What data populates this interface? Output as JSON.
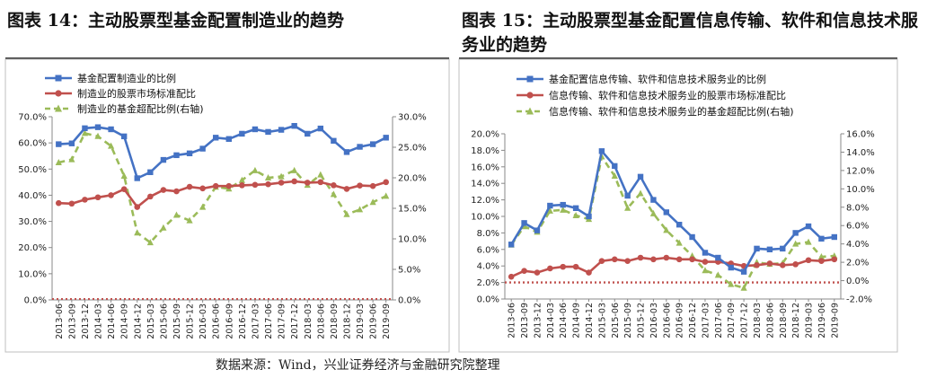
{
  "titles": {
    "left": "图表 14：主动股票型基金配置制造业的趋势",
    "right": "图表 15：主动股票型基金配置信息传输、软件和信息技术服务业的趋势"
  },
  "source": "数据来源：Wind，兴业证券经济与金融研究院整理",
  "colors": {
    "blue": "#4472C4",
    "red": "#C0504D",
    "green": "#9BBB59"
  },
  "chart_data": [
    {
      "type": "line",
      "title": "图表 14：主动股票型基金配置制造业的趋势",
      "x": [
        "2013-06",
        "2013-09",
        "2013-12",
        "2014-03",
        "2014-06",
        "2014-09",
        "2014-12",
        "2015-03",
        "2015-06",
        "2015-09",
        "2015-12",
        "2016-03",
        "2016-06",
        "2016-09",
        "2016-12",
        "2017-03",
        "2017-06",
        "2017-09",
        "2017-12",
        "2018-03",
        "2018-06",
        "2018-09",
        "2018-12",
        "2019-03",
        "2019-06",
        "2019-09"
      ],
      "y_left_ticks": [
        "0.0%",
        "10.0%",
        "20.0%",
        "30.0%",
        "40.0%",
        "50.0%",
        "60.0%",
        "70.0%"
      ],
      "y_right_ticks": [
        "0.0%",
        "5.0%",
        "10.0%",
        "15.0%",
        "20.0%",
        "25.0%",
        "30.0%"
      ],
      "ylim_left": [
        0,
        70
      ],
      "ylim_right": [
        0,
        30
      ],
      "series": [
        {
          "name": "基金配置制造业的比例",
          "axis": "left",
          "color": "blue",
          "marker": "square",
          "values": [
            59.5,
            59.8,
            65.6,
            66.0,
            65.2,
            62.5,
            46.5,
            48.8,
            53.5,
            55.3,
            56.0,
            57.8,
            62.0,
            61.5,
            63.5,
            65.2,
            64.2,
            65.0,
            66.5,
            63.5,
            65.5,
            60.8,
            56.5,
            58.5,
            59.5,
            62.0
          ]
        },
        {
          "name": "制造业的股票市场标准配比",
          "axis": "left",
          "color": "red",
          "marker": "circle",
          "values": [
            37.0,
            36.8,
            38.3,
            39.2,
            40.0,
            42.3,
            35.5,
            39.5,
            42.0,
            41.5,
            43.2,
            42.6,
            43.5,
            43.5,
            43.8,
            44.0,
            44.2,
            44.8,
            45.3,
            44.8,
            45.0,
            43.8,
            42.4,
            43.7,
            43.5,
            45.0
          ]
        },
        {
          "name": "制造业的基金超配比例(右轴)",
          "axis": "right",
          "color": "green",
          "marker": "triangle",
          "dashed": true,
          "values": [
            22.5,
            23.0,
            27.3,
            26.8,
            25.2,
            20.3,
            11.0,
            9.4,
            11.8,
            13.9,
            13.0,
            15.2,
            18.5,
            18.2,
            19.6,
            21.2,
            20.0,
            20.2,
            21.2,
            18.8,
            20.5,
            17.3,
            14.0,
            14.8,
            16.0,
            17.0
          ]
        }
      ]
    },
    {
      "type": "line",
      "title": "图表 15：主动股票型基金配置信息传输、软件和信息技术服务业的趋势",
      "x": [
        "2013-06",
        "2013-09",
        "2013-12",
        "2014-03",
        "2014-06",
        "2014-09",
        "2014-12",
        "2015-03",
        "2015-06",
        "2015-09",
        "2015-12",
        "2016-03",
        "2016-06",
        "2016-09",
        "2016-12",
        "2017-03",
        "2017-06",
        "2017-09",
        "2017-12",
        "2018-03",
        "2018-06",
        "2018-09",
        "2018-12",
        "2019-03",
        "2019-06",
        "2019-09"
      ],
      "y_left_ticks": [
        "0.0%",
        "2.0%",
        "4.0%",
        "6.0%",
        "8.0%",
        "10.0%",
        "12.0%",
        "14.0%",
        "16.0%",
        "18.0%",
        "20.0%"
      ],
      "y_right_ticks": [
        "-2.0%",
        "0.0%",
        "2.0%",
        "4.0%",
        "6.0%",
        "8.0%",
        "10.0%",
        "12.0%",
        "14.0%",
        "16.0%"
      ],
      "ylim_left": [
        0,
        20
      ],
      "ylim_right": [
        -2,
        16
      ],
      "series": [
        {
          "name": "基金配置信息传输、软件和信息技术服务业的比例",
          "axis": "left",
          "color": "blue",
          "marker": "square",
          "values": [
            6.6,
            9.2,
            8.3,
            11.3,
            11.4,
            11.0,
            10.0,
            17.9,
            16.1,
            12.5,
            14.8,
            12.0,
            10.5,
            9.0,
            7.5,
            5.6,
            5.0,
            3.8,
            3.3,
            6.1,
            6.0,
            6.1,
            8.0,
            8.8,
            7.3,
            7.5
          ]
        },
        {
          "name": "信息传输、软件和信息技术服务业的股票市场标准配比",
          "axis": "left",
          "color": "red",
          "marker": "circle",
          "values": [
            2.7,
            3.4,
            3.2,
            3.7,
            3.9,
            3.9,
            3.2,
            4.6,
            4.8,
            4.6,
            5.0,
            4.8,
            5.0,
            4.8,
            4.8,
            4.5,
            4.5,
            4.3,
            4.0,
            4.1,
            4.3,
            4.1,
            4.2,
            4.7,
            4.6,
            4.8
          ]
        },
        {
          "name": "信息传输、软件和信息技术服务业的基金超配比例(右轴)",
          "axis": "right",
          "color": "green",
          "marker": "triangle",
          "dashed": true,
          "values": [
            3.9,
            5.9,
            5.3,
            7.6,
            7.7,
            7.1,
            6.7,
            13.5,
            11.4,
            7.9,
            9.5,
            7.3,
            5.5,
            4.1,
            2.7,
            1.1,
            0.6,
            -0.4,
            -0.8,
            2.0,
            1.8,
            1.9,
            4.0,
            4.2,
            2.6,
            2.7
          ]
        }
      ],
      "reference_line": {
        "axis": "left",
        "value": 2.0,
        "color": "red",
        "style": "dotted"
      }
    }
  ]
}
